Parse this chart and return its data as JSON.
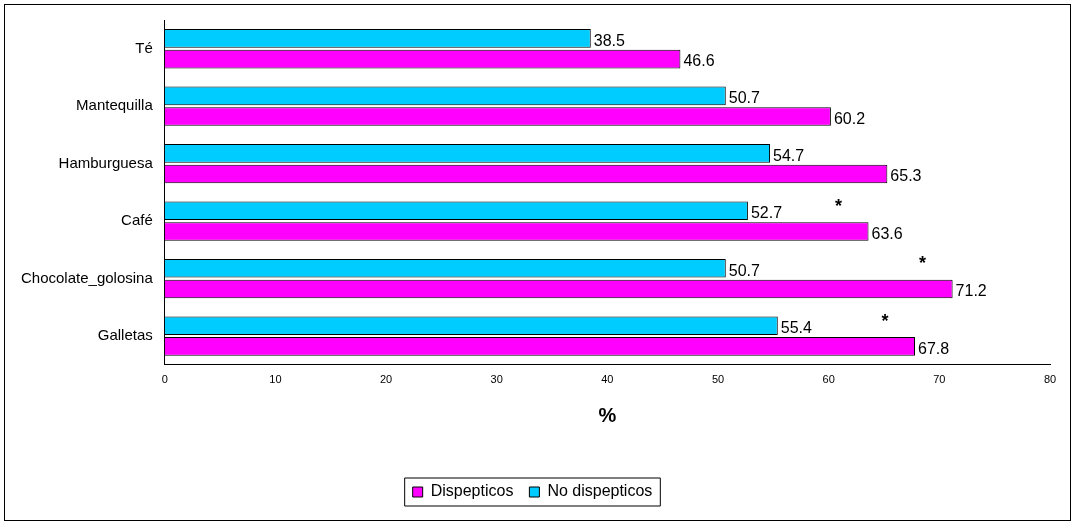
{
  "chart_data": {
    "type": "bar",
    "orientation": "horizontal",
    "xlabel": "%",
    "categories": [
      "Té",
      "Mantequilla",
      "Hamburguesa",
      "Café",
      "Chocolate_golosina",
      "Galletas"
    ],
    "series": [
      {
        "name": "Dispepticos",
        "color": "#ff00ff",
        "values": [
          46.6,
          60.2,
          65.3,
          63.6,
          71.2,
          67.8
        ]
      },
      {
        "name": "No dispepticos",
        "color": "#00ccff",
        "values": [
          38.5,
          50.7,
          54.7,
          52.7,
          50.7,
          55.4
        ]
      }
    ],
    "xlim": [
      0,
      80
    ],
    "xticks": [
      0,
      10,
      20,
      30,
      40,
      50,
      60,
      70,
      80
    ],
    "data_labels": true,
    "grid": false,
    "legend": "bottom",
    "annotations": [
      {
        "text": "*",
        "y": "Café"
      },
      {
        "text": "*",
        "y": "Chocolate_golosina"
      },
      {
        "text": "*",
        "y": "Galletas"
      }
    ]
  }
}
